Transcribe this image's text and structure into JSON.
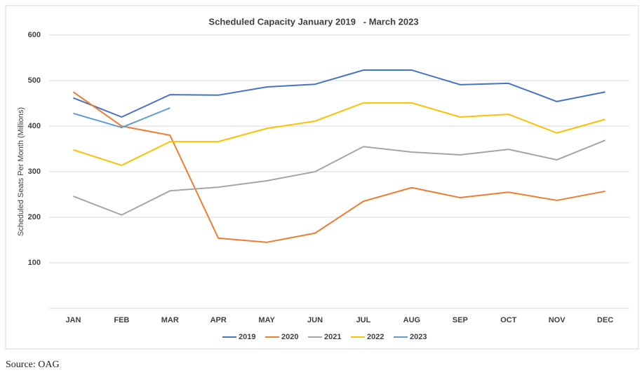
{
  "chart_data": {
    "type": "line",
    "title": "Scheduled Capacity January 2019   - March 2023",
    "y_label": "Scheduled Seats Per Month (Millions)",
    "source": "Source: OAG",
    "categories": [
      "JAN",
      "FEB",
      "MAR",
      "APR",
      "MAY",
      "JUN",
      "JUL",
      "AUG",
      "SEP",
      "OCT",
      "NOV",
      "DEC"
    ],
    "series": [
      {
        "name": "2019",
        "color": "#4472c4",
        "values": [
          462,
          420,
          469,
          468,
          486,
          492,
          523,
          523,
          491,
          494,
          454,
          475
        ]
      },
      {
        "name": "2020",
        "color": "#ed7d31",
        "values": [
          475,
          400,
          380,
          154,
          145,
          165,
          235,
          265,
          243,
          255,
          237,
          257
        ]
      },
      {
        "name": "2021",
        "color": "#a5a5a5",
        "values": [
          246,
          205,
          258,
          266,
          280,
          300,
          355,
          343,
          337,
          349,
          326,
          369
        ]
      },
      {
        "name": "2022",
        "color": "#ffc000",
        "values": [
          348,
          314,
          366,
          366,
          395,
          411,
          451,
          451,
          420,
          426,
          385,
          415
        ]
      },
      {
        "name": "2023",
        "color": "#5b9bd5",
        "values": [
          428,
          397,
          440,
          null,
          null,
          null,
          null,
          null,
          null,
          null,
          null,
          null
        ]
      }
    ],
    "ylim": [
      0,
      600
    ],
    "yticks": [
      100,
      200,
      300,
      400,
      500,
      600
    ],
    "grid": true,
    "legend": "bottom"
  }
}
